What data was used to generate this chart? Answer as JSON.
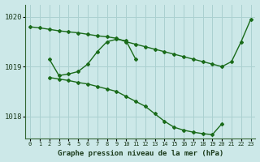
{
  "background_color": "#cce8e8",
  "grid_color": "#aad0d0",
  "line_color": "#1a6b1a",
  "title": "Graphe pression niveau de la mer (hPa)",
  "ylim": [
    1017.55,
    1020.25
  ],
  "xlim": [
    -0.5,
    23.5
  ],
  "yticks": [
    1018,
    1019,
    1020
  ],
  "xticks": [
    0,
    1,
    2,
    3,
    4,
    5,
    6,
    7,
    8,
    9,
    10,
    11,
    12,
    13,
    14,
    15,
    16,
    17,
    18,
    19,
    20,
    21,
    22,
    23
  ],
  "series": [
    {
      "x": [
        0,
        1,
        2,
        3,
        4,
        5,
        6,
        7,
        8,
        9,
        10,
        11,
        12,
        13,
        14,
        15,
        16,
        17,
        18,
        19,
        20,
        21,
        22,
        23
      ],
      "y": [
        1019.8,
        1019.78,
        1019.75,
        1019.72,
        1019.7,
        1019.68,
        1019.65,
        1019.62,
        1019.6,
        1019.57,
        1019.5,
        1019.45,
        1019.4,
        1019.35,
        1019.3,
        1019.25,
        1019.2,
        1019.15,
        1019.1,
        1019.05,
        1019.0,
        1019.1,
        1019.5,
        1019.95
      ]
    },
    {
      "x": [
        2,
        3,
        4,
        5,
        6,
        7,
        8,
        9,
        10,
        11
      ],
      "y": [
        1019.15,
        1018.82,
        1018.85,
        1018.9,
        1019.05,
        1019.3,
        1019.5,
        1019.55,
        1019.52,
        1019.15
      ]
    },
    {
      "x": [
        2,
        3,
        4,
        5,
        6,
        7,
        8,
        9,
        10,
        11,
        12,
        13,
        14,
        15,
        16,
        17,
        18,
        19,
        20
      ],
      "y": [
        1018.78,
        1018.75,
        1018.72,
        1018.68,
        1018.65,
        1018.6,
        1018.55,
        1018.5,
        1018.4,
        1018.3,
        1018.2,
        1018.05,
        1017.9,
        1017.78,
        1017.72,
        1017.68,
        1017.65,
        1017.63,
        1017.85
      ]
    }
  ]
}
